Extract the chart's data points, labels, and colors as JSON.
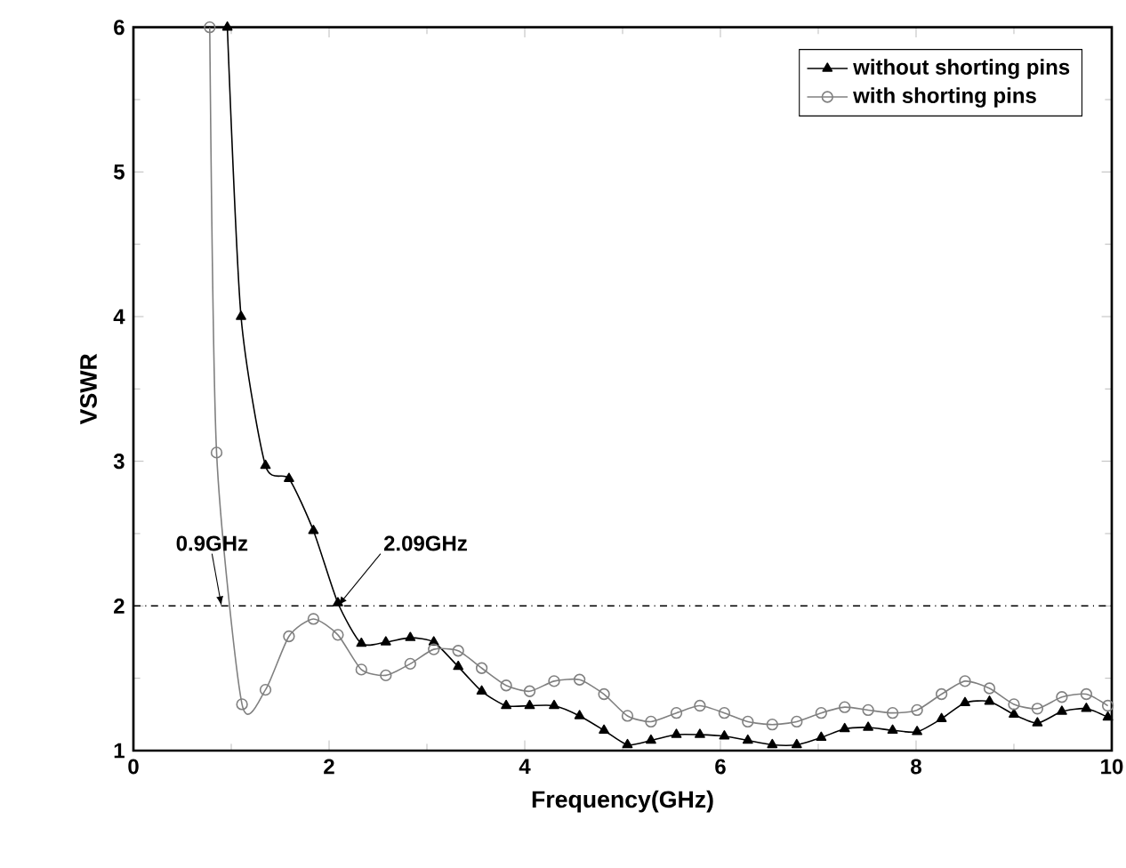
{
  "chart_data": {
    "type": "line",
    "xlabel": "Frequency(GHz)",
    "ylabel": "VSWR",
    "xlim": [
      0,
      10
    ],
    "ylim": [
      1,
      6
    ],
    "xticks": [
      0,
      2,
      4,
      6,
      8,
      10
    ],
    "yticks": [
      1,
      2,
      3,
      4,
      5,
      6
    ],
    "grid": false,
    "legend": "top right",
    "line_style": "solid",
    "series": [
      {
        "name": "without shorting pins",
        "color": "#000000",
        "marker": "triangle",
        "x": [
          0.96,
          1.1,
          1.35,
          1.59,
          1.84,
          2.09,
          2.33,
          2.58,
          2.83,
          3.07,
          3.32,
          3.56,
          3.81,
          4.05,
          4.3,
          4.56,
          4.81,
          5.05,
          5.29,
          5.55,
          5.79,
          6.04,
          6.28,
          6.53,
          6.78,
          7.03,
          7.27,
          7.51,
          7.76,
          8.01,
          8.26,
          8.5,
          8.75,
          9.0,
          9.24,
          9.49,
          9.74,
          9.96
        ],
        "values": [
          6.0,
          4.0,
          2.97,
          2.88,
          2.52,
          2.02,
          1.74,
          1.75,
          1.78,
          1.75,
          1.58,
          1.41,
          1.31,
          1.31,
          1.31,
          1.24,
          1.14,
          1.04,
          1.07,
          1.11,
          1.11,
          1.1,
          1.07,
          1.04,
          1.04,
          1.09,
          1.15,
          1.16,
          1.14,
          1.13,
          1.22,
          1.33,
          1.34,
          1.25,
          1.19,
          1.27,
          1.29,
          1.23
        ]
      },
      {
        "name": "with shorting pins",
        "color": "#808080",
        "marker": "circle",
        "x": [
          0.78,
          0.85,
          1.11,
          1.35,
          1.59,
          1.84,
          2.09,
          2.33,
          2.58,
          2.83,
          3.07,
          3.32,
          3.56,
          3.81,
          4.05,
          4.3,
          4.56,
          4.81,
          5.05,
          5.29,
          5.55,
          5.79,
          6.04,
          6.28,
          6.53,
          6.78,
          7.03,
          7.27,
          7.51,
          7.76,
          8.01,
          8.26,
          8.5,
          8.75,
          9.0,
          9.24,
          9.49,
          9.74,
          9.96
        ],
        "values": [
          6.0,
          3.06,
          1.32,
          1.42,
          1.79,
          1.91,
          1.8,
          1.56,
          1.52,
          1.6,
          1.7,
          1.69,
          1.57,
          1.45,
          1.41,
          1.48,
          1.49,
          1.39,
          1.24,
          1.2,
          1.26,
          1.31,
          1.26,
          1.2,
          1.18,
          1.2,
          1.26,
          1.3,
          1.28,
          1.26,
          1.28,
          1.39,
          1.48,
          1.43,
          1.32,
          1.29,
          1.37,
          1.39,
          1.31
        ]
      }
    ],
    "ref_lines": [
      {
        "axis": "y",
        "value": 2,
        "line_style": "dashdot"
      }
    ],
    "annotations": [
      {
        "text": "0.9GHz",
        "x": 0.9,
        "y": 2
      },
      {
        "text": "2.09GHz",
        "x": 2.09,
        "y": 2
      }
    ]
  }
}
